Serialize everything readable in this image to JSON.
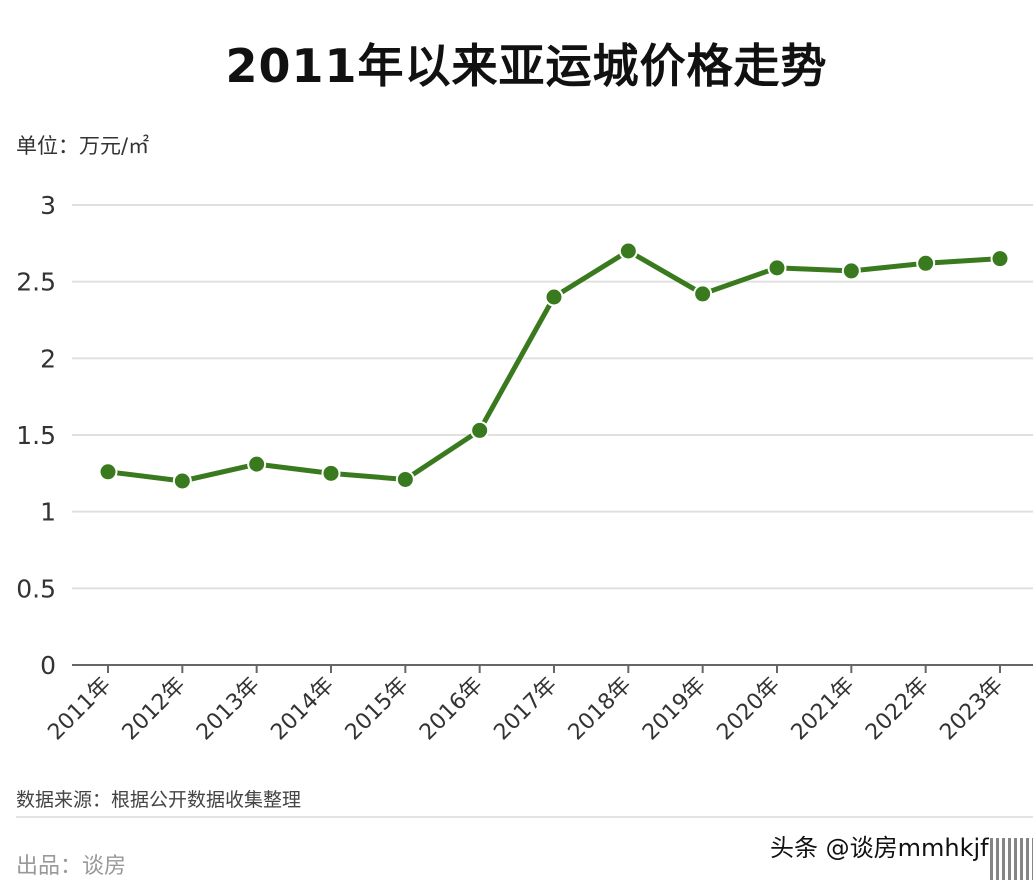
{
  "title": "2011年以来亚运城价格走势",
  "unit_label": "单位：万元/㎡",
  "source_label": "数据来源：根据公开数据收集整理",
  "producer_label": "出品：谈房",
  "watermark": "头条 @谈房mmhkjf",
  "colors": {
    "line": "#3a7a1e",
    "grid": "#e0e0e0",
    "axis": "#666666"
  },
  "chart_data": {
    "type": "line",
    "title": "2011年以来亚运城价格走势",
    "xlabel": "",
    "ylabel": "单位：万元/㎡",
    "categories": [
      "2011年",
      "2012年",
      "2013年",
      "2014年",
      "2015年",
      "2016年",
      "2017年",
      "2018年",
      "2019年",
      "2020年",
      "2021年",
      "2022年",
      "2023年"
    ],
    "series": [
      {
        "name": "亚运城价格",
        "values": [
          1.26,
          1.2,
          1.31,
          1.25,
          1.21,
          1.53,
          2.4,
          2.7,
          2.42,
          2.59,
          2.57,
          2.62,
          2.65
        ]
      }
    ],
    "yticks": [
      "0",
      "0.5",
      "1",
      "1.5",
      "2",
      "2.5",
      "3"
    ],
    "ylim": [
      0,
      3
    ],
    "grid": true,
    "legend": "none"
  }
}
